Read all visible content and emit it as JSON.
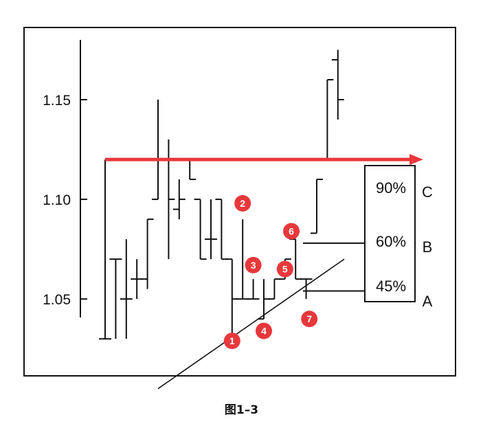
{
  "chart_data": {
    "type": "ohlc",
    "ylim": [
      1.018,
      1.18
    ],
    "y_ticks": [
      "1.15",
      "1.10",
      "1.05"
    ],
    "y_tick_values": [
      1.15,
      1.1,
      1.05
    ],
    "bars": [
      {
        "h": 1.12,
        "l": 1.03,
        "o": 1.03,
        "c": 1.03
      },
      {
        "h": 1.07,
        "l": 1.03,
        "o": 1.07,
        "c": 1.07
      },
      {
        "h": 1.08,
        "l": 1.03,
        "o": 1.05,
        "c": 1.05
      },
      {
        "h": 1.07,
        "l": 1.05,
        "o": 1.06,
        "c": 1.06
      },
      {
        "h": 1.09,
        "l": 1.055,
        "o": 1.06,
        "c": 1.09
      },
      {
        "h": 1.15,
        "l": 1.1,
        "o": 1.1,
        "c": 1.12
      },
      {
        "h": 1.13,
        "l": 1.07,
        "o": 1.12,
        "c": 1.1
      },
      {
        "h": 1.11,
        "l": 1.09,
        "o": 1.095,
        "c": 1.1
      },
      {
        "h": 1.12,
        "l": 1.11,
        "o": 1.12,
        "c": 1.11
      },
      {
        "h": 1.1,
        "l": 1.07,
        "o": 1.1,
        "c": 1.07
      },
      {
        "h": 1.1,
        "l": 1.07,
        "o": 1.08,
        "c": 1.08
      },
      {
        "h": 1.1,
        "l": 1.07,
        "o": 1.1,
        "c": 1.07
      },
      {
        "h": 1.07,
        "l": 1.03,
        "o": 1.07,
        "c": 1.05
      },
      {
        "h": 1.09,
        "l": 1.05,
        "o": 1.05,
        "c": 1.05
      },
      {
        "h": 1.06,
        "l": 1.05,
        "o": 1.05,
        "c": 1.05
      },
      {
        "h": 1.06,
        "l": 1.04,
        "o": 1.04,
        "c": 1.05
      },
      {
        "h": 1.06,
        "l": 1.05,
        "o": 1.05,
        "c": 1.06
      },
      {
        "h": 1.07,
        "l": 1.06,
        "o": 1.06,
        "c": 1.07
      },
      {
        "h": 1.08,
        "l": 1.06,
        "o": 1.08,
        "c": 1.06
      },
      {
        "h": 1.06,
        "l": 1.05,
        "o": 1.06,
        "c": 1.06
      },
      {
        "h": 1.11,
        "l": 1.083,
        "o": 1.083,
        "c": 1.11
      },
      {
        "h": 1.16,
        "l": 1.12,
        "o": 1.12,
        "c": 1.16
      },
      {
        "h": 1.175,
        "l": 1.14,
        "o": 1.17,
        "c": 1.15
      }
    ],
    "horizontal_level": 1.12,
    "trendline": {
      "from_bar": 5,
      "to_bar": 22.6,
      "y_from": 1.005,
      "y_to": 1.07
    },
    "target_arrows": [
      {
        "label": "B",
        "level": 1.078
      },
      {
        "label": "A",
        "level": 1.054
      }
    ],
    "numbered_points": [
      {
        "n": "1",
        "bar": 12,
        "y": 1.029
      },
      {
        "n": "2",
        "bar": 13,
        "y": 1.098
      },
      {
        "n": "3",
        "bar": 14,
        "y": 1.067
      },
      {
        "n": "4",
        "bar": 15,
        "y": 1.034
      },
      {
        "n": "5",
        "bar": 17,
        "y": 1.065
      },
      {
        "n": "6",
        "bar": 17.6,
        "y": 1.084
      },
      {
        "n": "7",
        "bar": 19.3,
        "y": 1.04
      }
    ],
    "retracement_box": {
      "rows": [
        {
          "percent": "90%",
          "letter": "C"
        },
        {
          "percent": "60%",
          "letter": "B"
        },
        {
          "percent": "45%",
          "letter": "A"
        }
      ]
    },
    "colors": {
      "price": "#111111",
      "highlight": "#e8383b",
      "badge": "#e8383b",
      "badge_text": "#ffffff"
    }
  },
  "caption": "图1–3"
}
